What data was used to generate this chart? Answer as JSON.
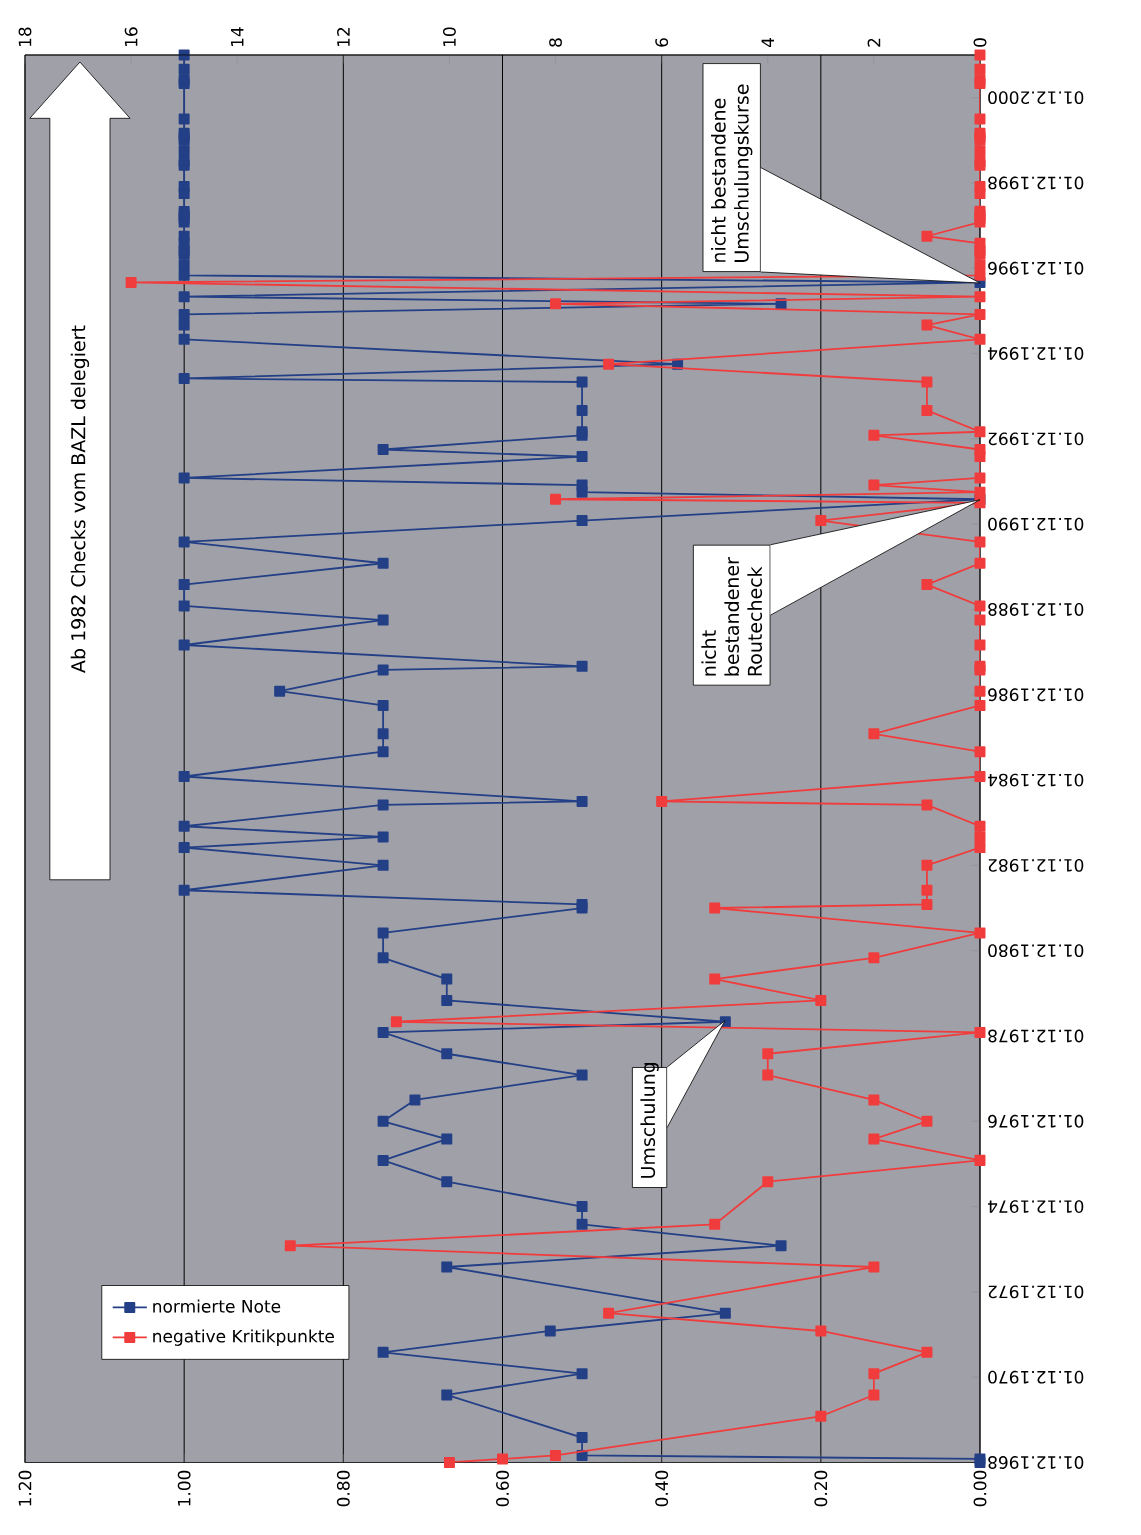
{
  "chart_data": {
    "type": "line",
    "orientation": "horizontal",
    "ylim": [
      "1968-12",
      "2001-12"
    ],
    "yticks": [
      {
        "value": "1968-12-01",
        "label": "01.12.1968"
      },
      {
        "value": "1970-12-01",
        "label": "01.12.1970"
      },
      {
        "value": "1972-12-01",
        "label": "01.12.1972"
      },
      {
        "value": "1974-12-01",
        "label": "01.12.1974"
      },
      {
        "value": "1976-12-01",
        "label": "01.12.1976"
      },
      {
        "value": "1978-12-01",
        "label": "01.12.1978"
      },
      {
        "value": "1980-12-01",
        "label": "01.12.1980"
      },
      {
        "value": "1982-12-01",
        "label": "01.12.1982"
      },
      {
        "value": "1984-12-01",
        "label": "01.12.1984"
      },
      {
        "value": "1986-12-01",
        "label": "01.12.1986"
      },
      {
        "value": "1988-12-01",
        "label": "01.12.1988"
      },
      {
        "value": "1990-12-01",
        "label": "01.12.1990"
      },
      {
        "value": "1992-12-01",
        "label": "01.12.1992"
      },
      {
        "value": "1994-12-01",
        "label": "01.12.1994"
      },
      {
        "value": "1996-12-01",
        "label": "01.12.1996"
      },
      {
        "value": "1998-12-01",
        "label": "01.12.1998"
      },
      {
        "value": "2000-12-01",
        "label": "01.12.2000"
      }
    ],
    "xlim": [
      1.2,
      0
    ],
    "xticks": [
      {
        "value": 0,
        "label": "0.00"
      },
      {
        "value": 0.2,
        "label": "0.20"
      },
      {
        "value": 0.4,
        "label": "0.40"
      },
      {
        "value": 0.6,
        "label": "0.60"
      },
      {
        "value": 0.8,
        "label": "0.80"
      },
      {
        "value": 1.0,
        "label": "1.00"
      },
      {
        "value": 1.2,
        "label": "1.20"
      }
    ],
    "x2lim": [
      18,
      0
    ],
    "x2ticks": [
      0,
      2,
      4,
      6,
      8,
      10,
      12,
      14,
      16,
      18
    ],
    "grid": "x",
    "legend": "bottom left",
    "marker": "square",
    "line_style": "solid",
    "series": [
      {
        "name": "normierte Note",
        "color": "#233f86",
        "x": [
          "1968-12",
          "1969-01",
          "1969-02",
          "1969-07",
          "1970-07",
          "1971-01",
          "1971-07",
          "1972-01",
          "1972-06",
          "1973-07",
          "1974-01",
          "1974-07",
          "1974-12",
          "1975-07",
          "1976-01",
          "1976-07",
          "1976-12",
          "1977-06",
          "1978-01",
          "1978-07",
          "1979-01",
          "1979-04",
          "1979-10",
          "1980-04",
          "1980-10",
          "1981-05",
          "1981-12",
          "1982-01",
          "1982-05",
          "1982-12",
          "1983-05",
          "1983-08",
          "1983-11",
          "1984-05",
          "1984-06",
          "1985-01",
          "1985-08",
          "1986-01",
          "1986-09",
          "1987-01",
          "1987-07",
          "1987-08",
          "1988-02",
          "1988-09",
          "1989-01",
          "1989-07",
          "1990-01",
          "1990-07",
          "1991-01",
          "1991-07",
          "1991-09",
          "1991-11",
          "1992-01",
          "1992-07",
          "1992-09",
          "1993-01",
          "1993-02",
          "1993-08",
          "1994-04",
          "1994-05",
          "1994-09",
          "1995-04",
          "1995-08",
          "1995-11",
          "1996-02",
          "1996-04",
          "1996-08",
          "1996-10",
          "1997-01",
          "1997-04",
          "1997-05",
          "1997-07",
          "1997-09",
          "1998-01",
          "1998-02",
          "1998-03",
          "1998-04",
          "1998-09",
          "1998-11",
          "1999-05",
          "1999-06",
          "1999-09",
          "1999-12",
          "2000-01",
          "2000-02",
          "2000-06",
          "2001-04",
          "2001-05",
          "2001-08",
          "2001-12"
        ],
        "values": [
          0,
          0,
          0.5,
          0.5,
          0.67,
          0.5,
          0.75,
          0.54,
          0.32,
          0.67,
          0.25,
          0.5,
          0.5,
          0.67,
          0.75,
          0.67,
          0.75,
          0.71,
          0.5,
          0.67,
          0.75,
          0.32,
          0.67,
          0.67,
          0.75,
          0.75,
          0.5,
          0.5,
          1,
          0.75,
          1,
          0.75,
          1,
          0.75,
          0.5,
          1,
          0.75,
          0.75,
          0.75,
          0.88,
          0.75,
          0.5,
          1,
          0.75,
          1,
          1,
          0.75,
          1,
          0.5,
          0,
          0.5,
          0.5,
          1,
          0.5,
          0.75,
          0.5,
          0.5,
          0.5,
          0.5,
          1,
          0.38,
          1,
          1,
          1,
          0.25,
          1,
          0,
          1,
          1,
          1,
          1,
          1,
          1,
          1,
          1,
          1,
          1,
          1,
          1,
          1,
          1,
          1,
          1,
          1,
          1,
          1,
          1,
          1,
          1,
          1
        ]
      },
      {
        "name": "negative Kritikpunkte",
        "color": "#f03c3c",
        "axis": "x2",
        "x": [
          "1968-12",
          "1969-01",
          "1969-02",
          "1970-01",
          "1970-07",
          "1971-01",
          "1971-07",
          "1972-01",
          "1972-06",
          "1973-07",
          "1974-01",
          "1974-07",
          "1975-07",
          "1976-01",
          "1976-07",
          "1976-12",
          "1977-06",
          "1978-01",
          "1978-07",
          "1979-01",
          "1979-04",
          "1979-10",
          "1980-04",
          "1980-10",
          "1981-05",
          "1981-12",
          "1982-01",
          "1982-05",
          "1982-12",
          "1983-05",
          "1983-08",
          "1983-11",
          "1984-05",
          "1984-06",
          "1985-01",
          "1985-08",
          "1986-01",
          "1986-09",
          "1987-01",
          "1987-07",
          "1987-08",
          "1988-02",
          "1988-09",
          "1989-01",
          "1989-07",
          "1990-01",
          "1990-07",
          "1991-01",
          "1991-06",
          "1991-07",
          "1991-09",
          "1991-11",
          "1992-01",
          "1992-07",
          "1992-09",
          "1993-01",
          "1993-02",
          "1993-08",
          "1994-04",
          "1994-09",
          "1995-04",
          "1995-08",
          "1995-11",
          "1996-02",
          "1996-04",
          "1996-08",
          "1996-10",
          "1997-01",
          "1997-04",
          "1997-05",
          "1997-07",
          "1997-09",
          "1998-01",
          "1998-02",
          "1998-03",
          "1998-04",
          "1998-09",
          "1998-11",
          "1999-05",
          "1999-06",
          "1999-09",
          "1999-12",
          "2000-01",
          "2000-02",
          "2000-06",
          "2001-04",
          "2001-05",
          "2001-08",
          "2001-12"
        ],
        "values": [
          10,
          9,
          8,
          3,
          2,
          2,
          1,
          3,
          7,
          2,
          13,
          5,
          4,
          0,
          2,
          1,
          2,
          4,
          4,
          0,
          11,
          3,
          5,
          2,
          0,
          5,
          1,
          1,
          1,
          0,
          0,
          0,
          1,
          6,
          0,
          0,
          2,
          0,
          0,
          0,
          0,
          0,
          0,
          0,
          1,
          0,
          0,
          3,
          0,
          8,
          0,
          2,
          0,
          0,
          0,
          2,
          0,
          1,
          1,
          7,
          0,
          1,
          0,
          8,
          0,
          16,
          0,
          0,
          0,
          0,
          0,
          1,
          0,
          0,
          0,
          0,
          0,
          0,
          0,
          0,
          0,
          0,
          0,
          0,
          0,
          0,
          0,
          0,
          0
        ]
      }
    ],
    "annotations": [
      "Ab 1982 Checks vom BAZL delegiert",
      "Umschulung",
      "nicht bestandener Routecheck",
      "nicht bestandene Umschulungskurse"
    ]
  }
}
